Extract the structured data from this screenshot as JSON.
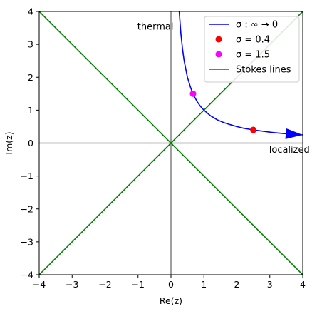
{
  "chart_data": {
    "type": "line",
    "xlabel": "Re(z)",
    "ylabel": "Im(z)",
    "xlim": [
      -4,
      4
    ],
    "ylim": [
      -4,
      4
    ],
    "xticks": [
      -4,
      -3,
      -2,
      -1,
      0,
      1,
      2,
      3,
      4
    ],
    "yticks": [
      -4,
      -3,
      -2,
      -1,
      0,
      1,
      2,
      3,
      4
    ],
    "xtick_labels": [
      "−4",
      "−3",
      "−2",
      "−1",
      "0",
      "1",
      "2",
      "3",
      "4"
    ],
    "ytick_labels": [
      "−4",
      "−3",
      "−2",
      "−1",
      "0",
      "1",
      "2",
      "3",
      "4"
    ],
    "grid": false,
    "legend_position": "top-right",
    "series": [
      {
        "name": "σ : ∞ → 0",
        "kind": "line",
        "color": "#0000ff",
        "x": [
          0.25,
          0.3,
          0.35,
          0.4,
          0.5,
          0.6,
          0.7,
          0.8,
          0.9,
          1.0,
          1.2,
          1.4,
          1.6,
          1.8,
          2.0,
          2.2,
          2.5,
          2.8,
          3.1,
          3.4,
          3.7,
          4.0
        ],
        "y": [
          4.0,
          3.33,
          2.86,
          2.5,
          2.0,
          1.67,
          1.43,
          1.25,
          1.11,
          1.0,
          0.83,
          0.71,
          0.625,
          0.56,
          0.5,
          0.45,
          0.4,
          0.36,
          0.32,
          0.29,
          0.27,
          0.25
        ],
        "arrow_end": true
      },
      {
        "name": "σ = 0.4",
        "kind": "point",
        "color": "#ff0000",
        "x": [
          2.5
        ],
        "y": [
          0.4
        ]
      },
      {
        "name": "σ = 1.5",
        "kind": "point",
        "color": "#ff00ff",
        "x": [
          0.67
        ],
        "y": [
          1.5
        ]
      },
      {
        "name": "Stokes lines",
        "kind": "line",
        "color": "#008000",
        "lines": [
          {
            "x": [
              -4,
              4
            ],
            "y": [
              -4,
              4
            ]
          },
          {
            "x": [
              -4,
              4
            ],
            "y": [
              4,
              -4
            ]
          }
        ]
      }
    ],
    "reference_lines": {
      "color": "#808080",
      "x0": 0,
      "y0": 0
    },
    "annotations": [
      {
        "text": "thermal",
        "x": -1.0,
        "y": 3.55
      },
      {
        "text": "localized",
        "x": 3.0,
        "y": -0.2
      }
    ]
  }
}
